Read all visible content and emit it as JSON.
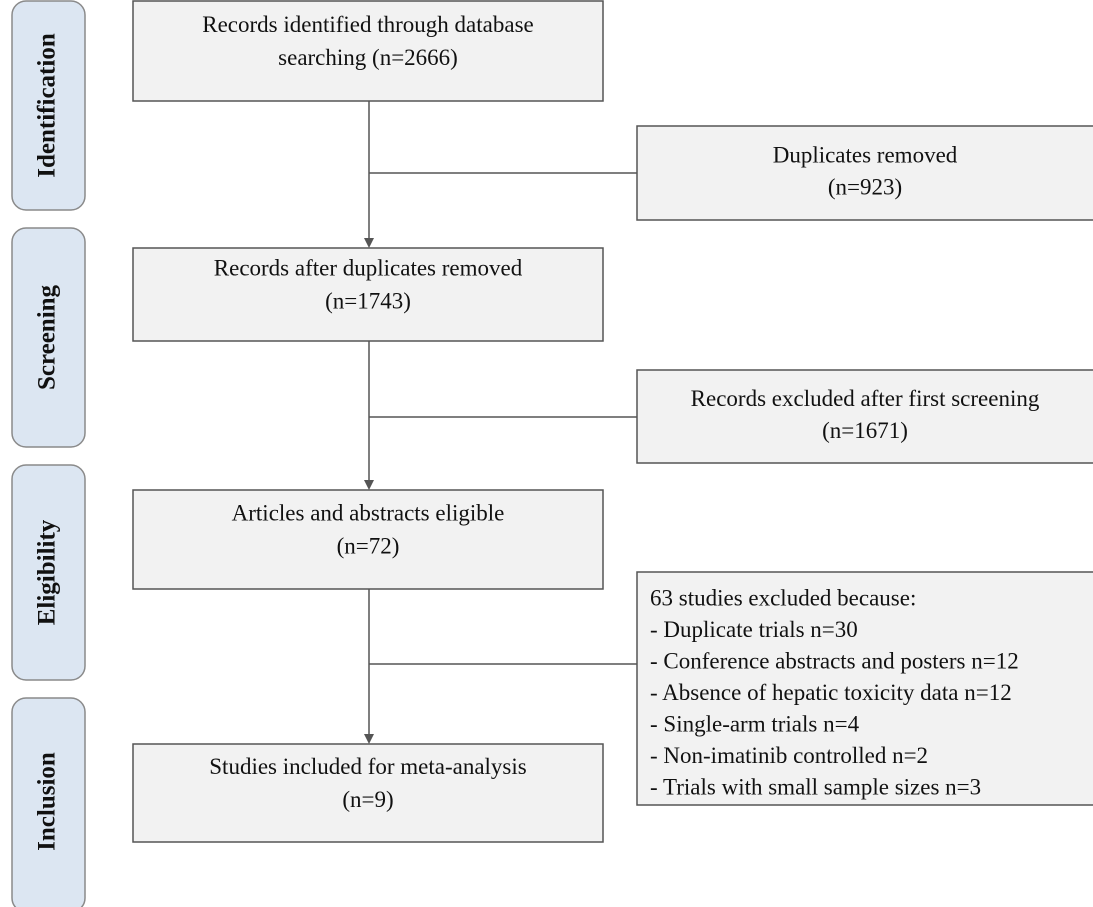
{
  "stages": [
    "Identification",
    "Screening",
    "Eligibility",
    "Inclusion"
  ],
  "boxes": [
    {
      "lines": [
        "Records identified through database",
        "searching (n=2666)"
      ]
    },
    {
      "lines": [
        "Records after duplicates removed",
        "(n=1743)"
      ]
    },
    {
      "lines": [
        "Articles and abstracts eligible",
        "(n=72)"
      ]
    },
    {
      "lines": [
        "Studies included for meta-analysis",
        "(n=9)"
      ]
    }
  ],
  "exclusions": [
    {
      "lines": [
        "Duplicates removed",
        "(n=923)"
      ]
    },
    {
      "lines": [
        "Records excluded after first screening",
        "(n=1671)"
      ]
    },
    {
      "lines": [
        "63 studies excluded because:",
        "- Duplicate trials  n=30",
        "- Conference abstracts and posters n=12",
        "- Absence of hepatic toxicity data n=12",
        "- Single-arm trials  n=4",
        "- Non-imatinib controlled n=2",
        "- Trials with small sample sizes n=3"
      ]
    }
  ]
}
